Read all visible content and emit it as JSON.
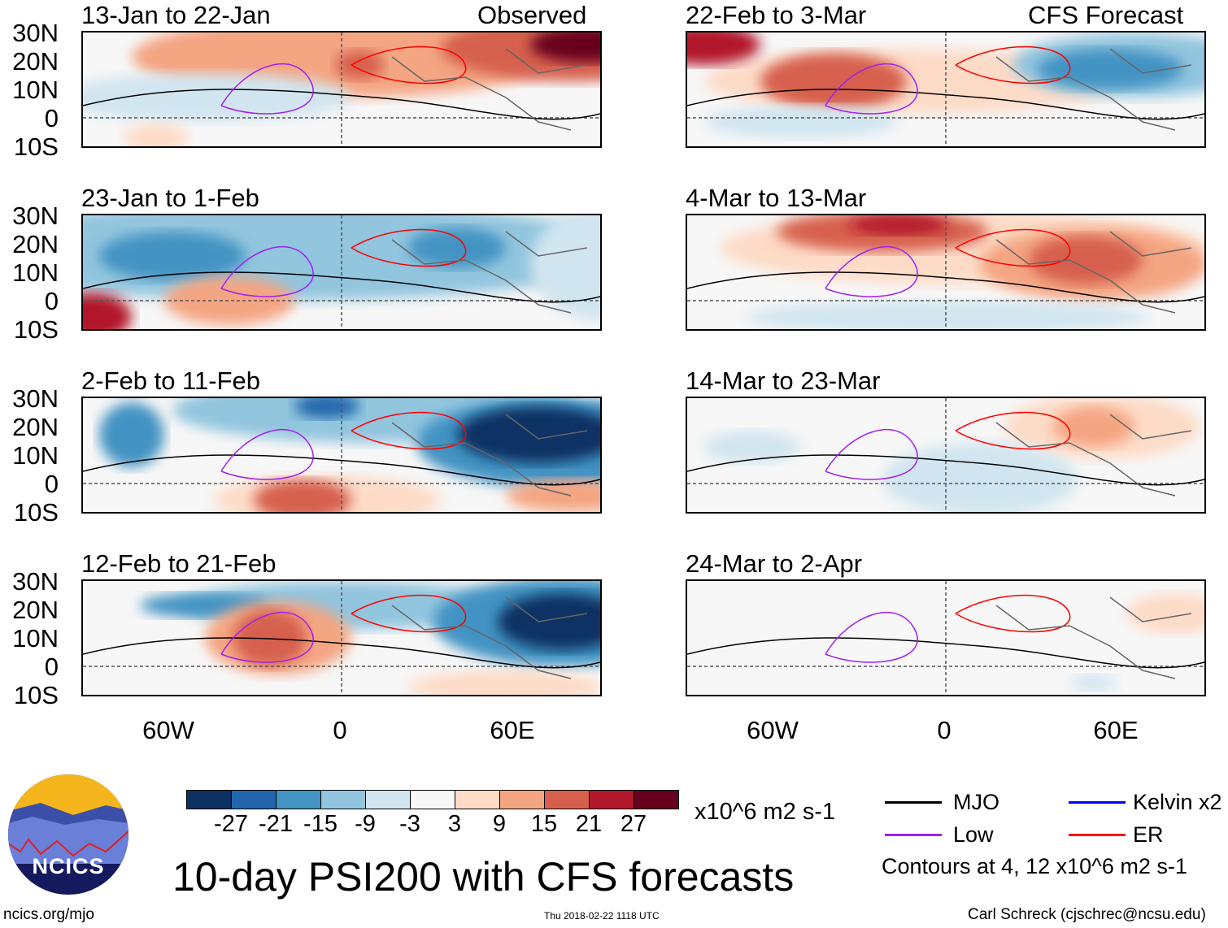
{
  "header": {
    "left_label": "Observed",
    "right_label": "CFS Forecast"
  },
  "latitude_labels": [
    "30N",
    "20N",
    "10N",
    "0",
    "10S"
  ],
  "longitude_labels": [
    "60W",
    "0",
    "60E"
  ],
  "panels_observed": [
    {
      "title": "13-Jan to 22-Jan"
    },
    {
      "title": "23-Jan to 1-Feb"
    },
    {
      "title": "2-Feb to 11-Feb"
    },
    {
      "title": "12-Feb to 21-Feb"
    }
  ],
  "panels_forecast": [
    {
      "title": "22-Feb to 3-Mar"
    },
    {
      "title": "4-Mar to 13-Mar"
    },
    {
      "title": "14-Mar to 23-Mar"
    },
    {
      "title": "24-Mar to 2-Apr"
    }
  ],
  "colorbar": {
    "colors": [
      "#0b3163",
      "#2166ac",
      "#4393c3",
      "#92c5de",
      "#d1e5f0",
      "#f7f7f7",
      "#fddbc7",
      "#f4a582",
      "#d6604d",
      "#b2182b",
      "#67001f"
    ],
    "ticks": [
      "-27",
      "-21",
      "-15",
      "-9",
      "-3",
      "3",
      "9",
      "15",
      "21",
      "27"
    ],
    "units": "x10^6 m2 s-1"
  },
  "legend": {
    "items": [
      {
        "label": "MJO",
        "color": "#000000"
      },
      {
        "label": "Kelvin x2",
        "color": "#0000ff"
      },
      {
        "label": "Low",
        "color": "#a020f0"
      },
      {
        "label": "ER",
        "color": "#ff0000"
      }
    ],
    "contours_note": "Contours at 4, 12 x10^6 m2 s-1"
  },
  "logo": {
    "text": "NCICS"
  },
  "title": "10-day PSI200 with CFS forecasts",
  "footer": {
    "url": "ncics.org/mjo",
    "timestamp": "Thu 2018-02-22 1118 UTC",
    "author": "Carl Schreck (cjschrec@ncsu.edu)"
  }
}
